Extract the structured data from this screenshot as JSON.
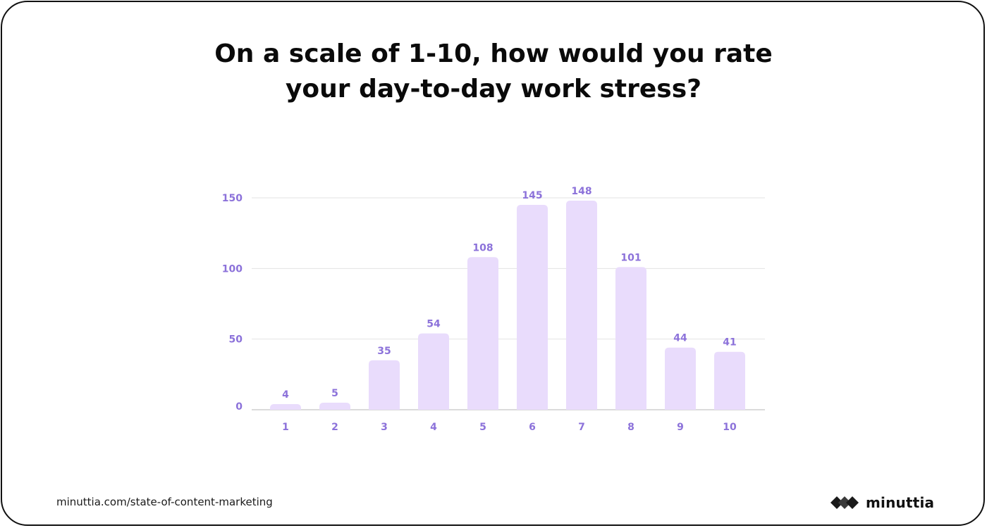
{
  "title_lines": [
    "On a scale of 1-10, how would you rate",
    "your day-to-day work stress?"
  ],
  "footer": {
    "url": "minuttia.com/state-of-content-marketing",
    "brand": "minuttia"
  },
  "colors": {
    "bar": "#E9DCFC",
    "label": "#8C72DA",
    "grid": "#E3E3E3",
    "axis": "#CFCFCF",
    "title": "#0A0A0A"
  },
  "chart_data": {
    "type": "bar",
    "categories": [
      "1",
      "2",
      "3",
      "4",
      "5",
      "6",
      "7",
      "8",
      "9",
      "10"
    ],
    "values": [
      4,
      5,
      35,
      54,
      108,
      145,
      148,
      101,
      44,
      41
    ],
    "title": "On a scale of 1-10, how would you rate your day-to-day work stress?",
    "xlabel": "",
    "ylabel": "",
    "ylim": [
      0,
      150
    ],
    "yticks": [
      0,
      50,
      100,
      150
    ],
    "grid": true,
    "legend": "none",
    "data_labels": true
  }
}
